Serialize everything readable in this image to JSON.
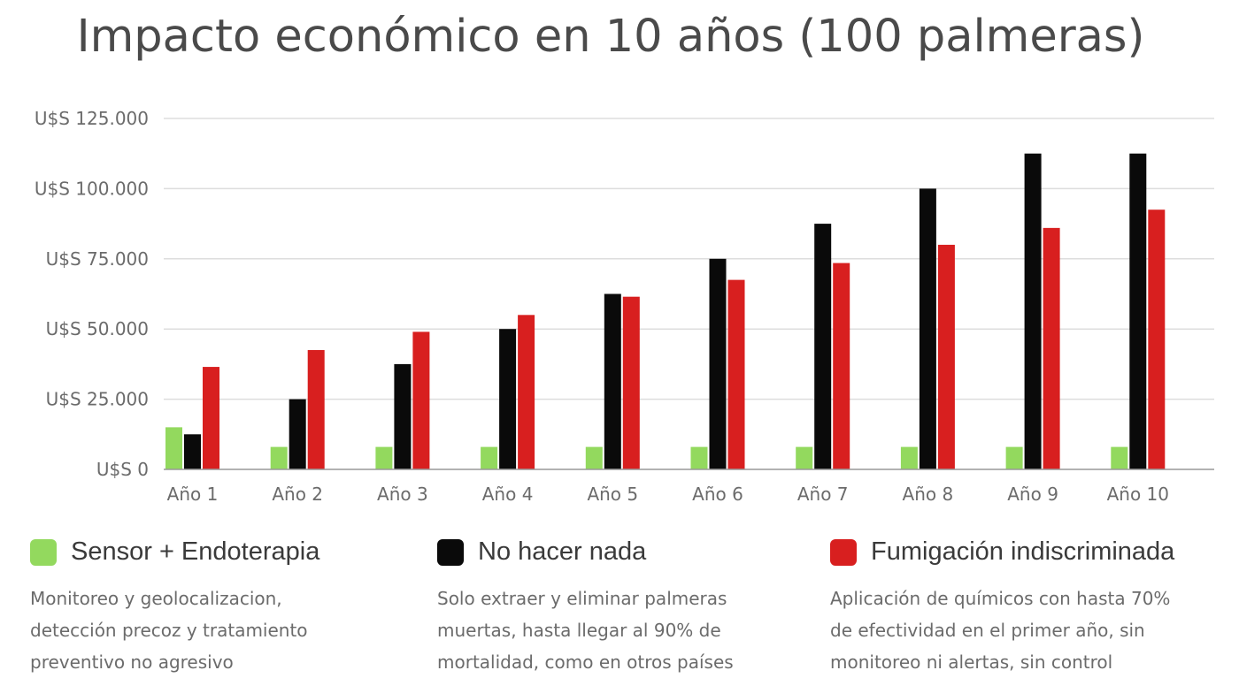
{
  "title": "Impacto económico en 10 años (100 palmeras)",
  "colors": {
    "sensor": "#93d95e",
    "nada": "#0a0a0a",
    "fumigacion": "#d81f1f",
    "grid": "#dddddd",
    "axis": "#999999"
  },
  "chart_data": {
    "type": "bar",
    "title": "Impacto económico en 10 años (100 palmeras)",
    "categories": [
      "Año 1",
      "Año 2",
      "Año 3",
      "Año 4",
      "Año 5",
      "Año 6",
      "Año 7",
      "Año 8",
      "Año 9",
      "Año 10"
    ],
    "series": [
      {
        "name": "Sensor + Endoterapia",
        "color_key": "sensor",
        "values": [
          15000,
          8000,
          8000,
          8000,
          8000,
          8000,
          8000,
          8000,
          8000,
          8000
        ]
      },
      {
        "name": "No hacer nada",
        "color_key": "nada",
        "values": [
          12500,
          25000,
          37500,
          50000,
          62500,
          75000,
          87500,
          100000,
          112500,
          112500
        ]
      },
      {
        "name": "Fumigación indiscriminada",
        "color_key": "fumigacion",
        "values": [
          36500,
          42500,
          49000,
          55000,
          61500,
          67500,
          73500,
          80000,
          86000,
          92500
        ]
      }
    ],
    "yticks": [
      0,
      25000,
      50000,
      75000,
      100000,
      125000
    ],
    "ytick_labels": [
      "U$S 0",
      "U$S 25.000",
      "U$S 50.000",
      "U$S 75.000",
      "U$S 100.000",
      "U$S 125.000"
    ],
    "ylim": [
      0,
      125000
    ],
    "grid": true,
    "legend_position": "bottom"
  },
  "legend": [
    {
      "name": "Sensor + Endoterapia",
      "color_key": "sensor",
      "desc_lines": [
        "Monitoreo y geolocalizacion,",
        "detección precoz y tratamiento",
        "preventivo no agresivo"
      ]
    },
    {
      "name": "No hacer nada",
      "color_key": "nada",
      "desc_lines": [
        "Solo extraer y eliminar palmeras",
        "muertas, hasta llegar al 90% de",
        "mortalidad, como en otros países"
      ]
    },
    {
      "name": "Fumigación indiscriminada",
      "color_key": "fumigacion",
      "desc_lines": [
        "Aplicación de químicos con hasta 70%",
        "de efectividad en el primer año, sin",
        "monitoreo ni alertas, sin control"
      ]
    }
  ]
}
